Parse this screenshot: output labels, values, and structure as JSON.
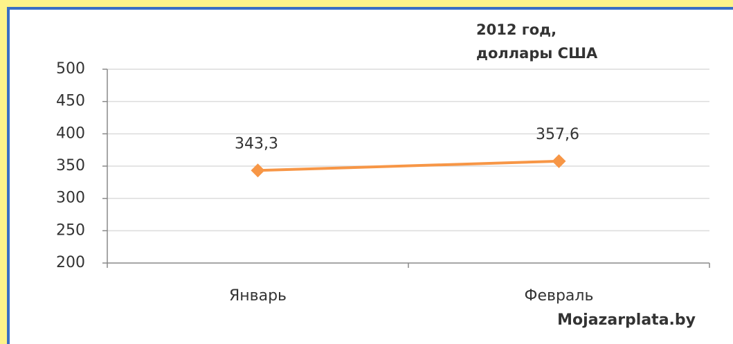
{
  "chart_data": {
    "type": "line",
    "title": "2012 год,",
    "subtitle": "доллары США",
    "categories": [
      "Январь",
      "Февраль"
    ],
    "series": [
      {
        "name": "2012 год",
        "color": "#f79646",
        "values": [
          343.3,
          357.6
        ],
        "value_labels": [
          "343,3",
          "357,6"
        ]
      }
    ],
    "ylim": [
      200,
      500
    ],
    "yticks": [
      200,
      250,
      300,
      350,
      400,
      450,
      500
    ],
    "grid": true,
    "annotations": [
      "Mojazarplata.by"
    ]
  }
}
